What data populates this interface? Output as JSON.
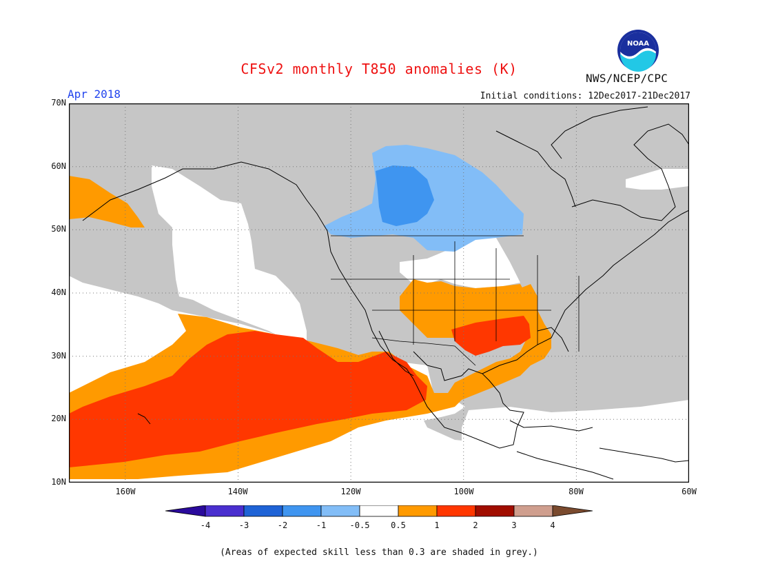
{
  "title": "CFSv2 monthly T850 anomalies (K)",
  "subtitle": "Apr 2018",
  "initial_conditions": "Initial conditions: 12Dec2017-21Dec2017",
  "agency": "NWS/NCEP/CPC",
  "logo_text": "NOAA",
  "footnote": "(Areas of expected skill less than 0.3 are shaded in grey.)",
  "lat_labels": [
    "70N",
    "60N",
    "50N",
    "40N",
    "30N",
    "20N",
    "10N"
  ],
  "lon_labels": [
    "160W",
    "140W",
    "120W",
    "100W",
    "80W",
    "60W"
  ],
  "colorbar": {
    "labels": [
      "-4",
      "-3",
      "-2",
      "-1",
      "-0.5",
      "0.5",
      "1",
      "2",
      "3",
      "4"
    ],
    "colors": [
      "#2a0a9c",
      "#4a2fcf",
      "#1f63d6",
      "#3f95f0",
      "#82bdf7",
      "#ffffff",
      "#ff9a00",
      "#ff3700",
      "#a00d00",
      "#cf9e8e",
      "#7a4a2e"
    ]
  },
  "colors": {
    "grey_low_skill": "#c6c6c6",
    "neutral": "#ffffff",
    "anom_pos_05_1": "#ff9a00",
    "anom_pos_1_2": "#ff3700",
    "anom_neg_05_1": "#82bdf7",
    "anom_neg_1_2": "#3f95f0"
  }
}
